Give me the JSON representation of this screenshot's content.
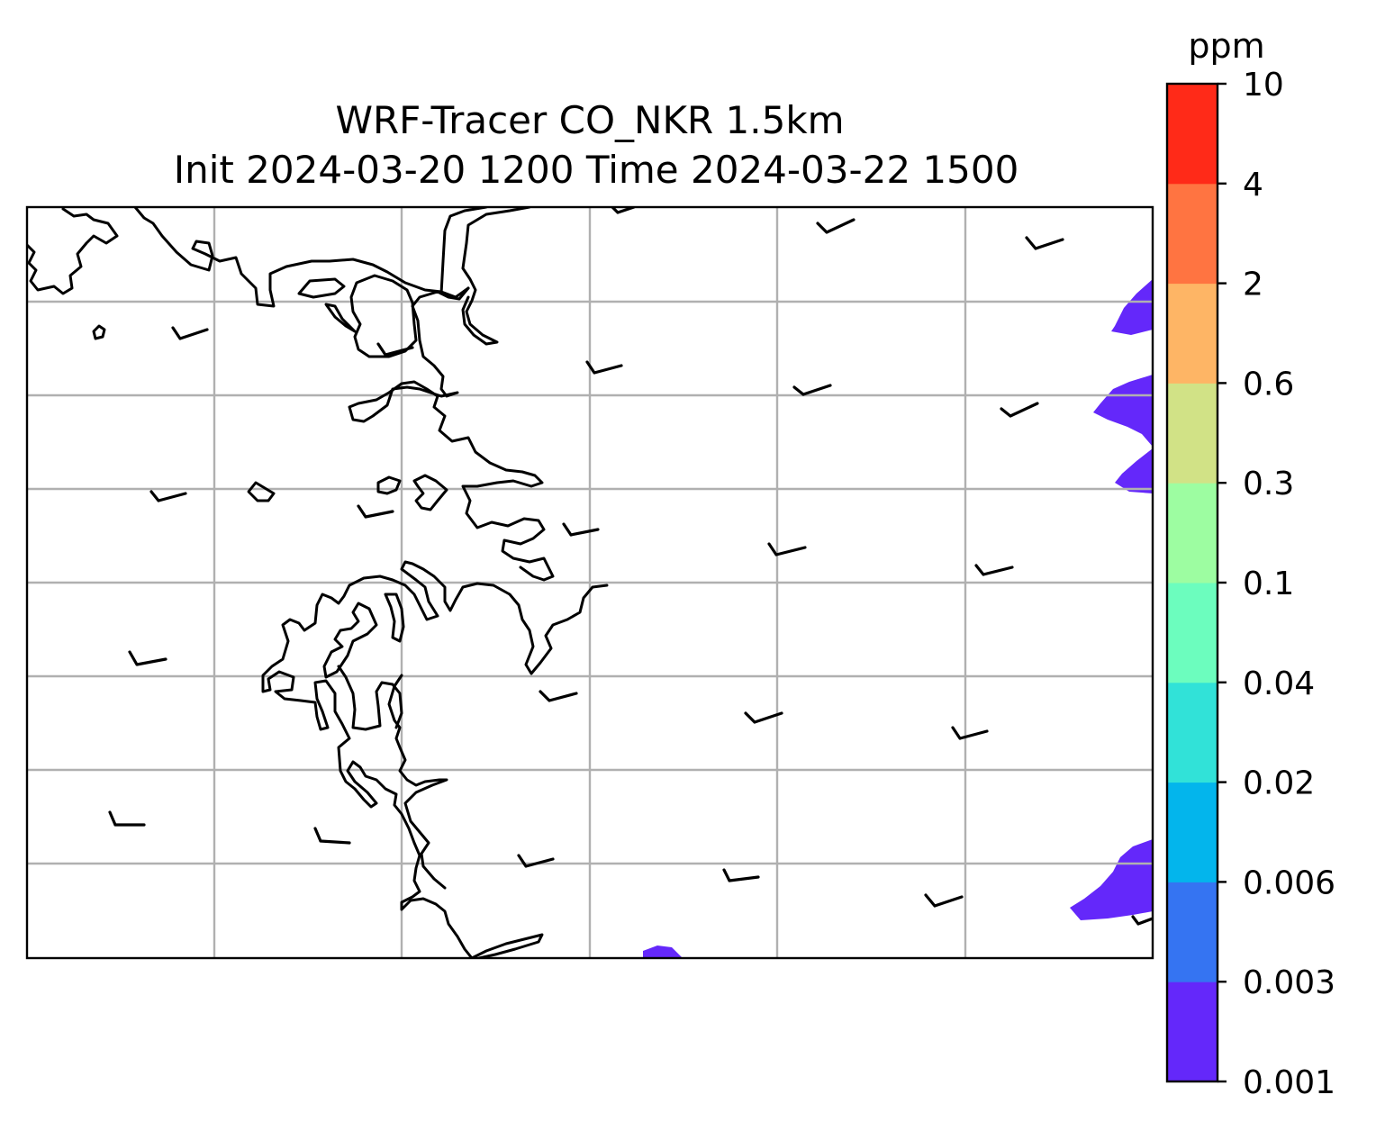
{
  "title_line1": "WRF-Tracer CO_NKR 1.5km",
  "title_line2": "Init 2024-03-20 1200 Time 2024-03-22 1500",
  "colorbar": {
    "unit": "ppm",
    "levels": [
      "0.001",
      "0.003",
      "0.006",
      "0.02",
      "0.04",
      "0.1",
      "0.3",
      "0.6",
      "2",
      "4",
      "10"
    ],
    "colors": [
      "#6428fa",
      "#3574f2",
      "#03b5ec",
      "#31e2d8",
      "#6cfdbe",
      "#9dfda1",
      "#d1e286",
      "#feb565",
      "#ff7441",
      "#ff2a18"
    ]
  },
  "map": {
    "gridlines": true,
    "coastline_color": "#000000",
    "gridline_color": "#b0b0b0"
  },
  "chart_data": {
    "type": "heatmap",
    "title": "WRF-Tracer CO_NKR 1.5km\nInit 2024-03-20 1200 Time 2024-03-22 1500",
    "colorbar_label": "ppm",
    "colorbar_ticks": [
      0.001,
      0.003,
      0.006,
      0.02,
      0.04,
      0.1,
      0.3,
      0.6,
      2,
      4,
      10
    ],
    "filled_regions": [
      {
        "location": "right edge upper",
        "level_range": [
          0.001,
          0.003
        ]
      },
      {
        "location": "right edge middle",
        "level_range": [
          0.001,
          0.003
        ]
      },
      {
        "location": "right edge lower",
        "level_range": [
          0.001,
          0.003
        ]
      },
      {
        "location": "bottom center",
        "level_range": [
          0.001,
          0.003
        ]
      }
    ],
    "wind_barbs": "light westerly winds across domain",
    "grid": true
  }
}
